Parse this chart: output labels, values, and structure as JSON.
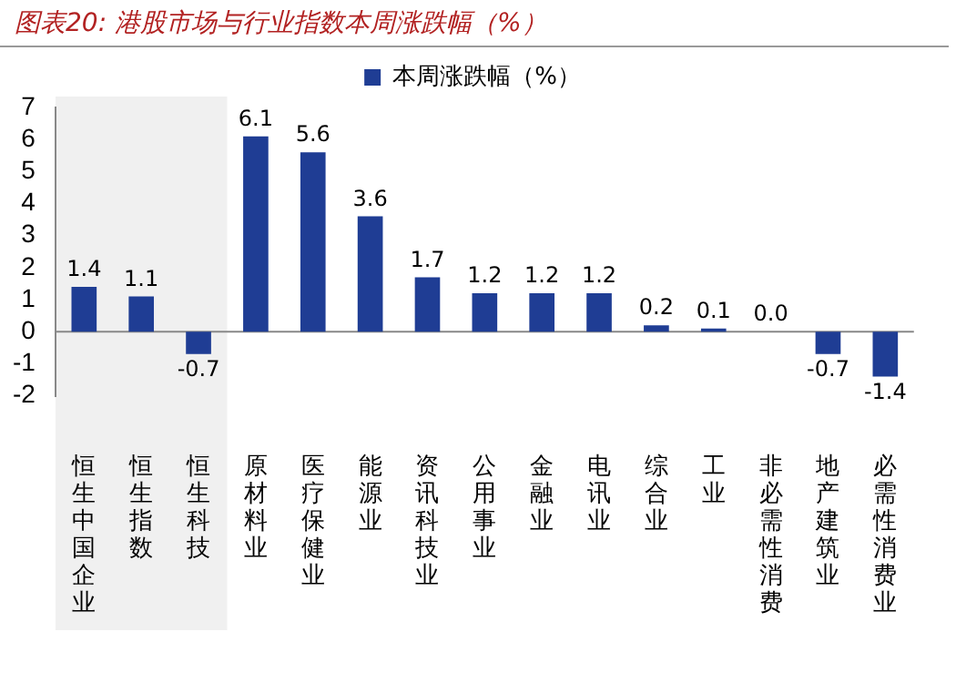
{
  "chart_data": {
    "type": "bar",
    "title": "图表20: 港股市场与行业指数本周涨跌幅（%）",
    "categories": [
      "恒生中国企业",
      "恒生指数",
      "恒生科技",
      "原材料业",
      "医疗保健业",
      "能源业",
      "资讯科技业",
      "公用事业",
      "金融业",
      "电讯业",
      "综合业",
      "工业",
      "非必需性消费",
      "地产建筑业",
      "必需性消费业"
    ],
    "series": [
      {
        "name": "本周涨跌幅（%）",
        "color": "#1f3d94",
        "values": [
          1.4,
          1.1,
          -0.7,
          6.1,
          5.6,
          3.6,
          1.7,
          1.2,
          1.2,
          1.2,
          0.2,
          0.1,
          0.0,
          -0.7,
          -1.4
        ]
      }
    ],
    "value_labels": [
      "1.4",
      "1.1",
      "-0.7",
      "6.1",
      "5.6",
      "3.6",
      "1.7",
      "1.2",
      "1.2",
      "1.2",
      "0.2",
      "0.1",
      "0.0",
      "-0.7",
      "-1.4"
    ],
    "ylim": [
      -2,
      7
    ],
    "yticks": [
      -2,
      -1,
      0,
      1,
      2,
      3,
      4,
      5,
      6,
      7
    ],
    "bands": [
      {
        "axis": "x",
        "from": "恒生中国企业",
        "to": "恒生科技",
        "color": "#f0f0f0"
      }
    ],
    "ref_lines": [
      {
        "axis": "y",
        "value": 0,
        "color": "#888888"
      }
    ],
    "grid": false,
    "legend": "top"
  }
}
